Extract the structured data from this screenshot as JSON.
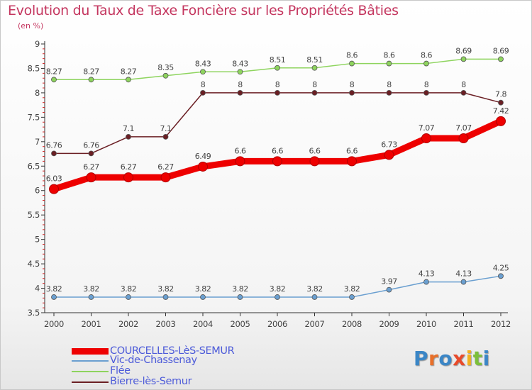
{
  "title": "Evolution du Taux de Taxe Foncière sur les Propriétés Bâties",
  "subtitle": "(en %)",
  "logo": {
    "text": "Proxiti",
    "letter_colors": [
      "#3b86c6",
      "#e8702a",
      "#3b86c6",
      "#e84a2a",
      "#f2b01e",
      "#7cbf3b",
      "#3b86c6"
    ]
  },
  "chart_data": {
    "type": "line",
    "x": [
      "2000",
      "2001",
      "2002",
      "2003",
      "2004",
      "2005",
      "2006",
      "2007",
      "2008",
      "2009",
      "2010",
      "2011",
      "2012"
    ],
    "ylim": [
      3.5,
      9
    ],
    "yticks": [
      "3.5",
      "4",
      "4.5",
      "5",
      "5.5",
      "6",
      "6.5",
      "7",
      "7.5",
      "8",
      "8.5",
      "9"
    ],
    "grid": false,
    "legend_position": "bottom-left",
    "series": [
      {
        "name": "Bierre-lès-Semur",
        "color": "#6b1f24",
        "values": [
          6.76,
          6.76,
          7.1,
          7.1,
          8,
          8,
          8,
          8,
          8,
          8,
          8,
          8,
          7.8
        ],
        "labels": [
          "6.76",
          "6.76",
          "7.1",
          "7.1",
          "8",
          "8",
          "8",
          "8",
          "8",
          "8",
          "8",
          "8",
          "7.8"
        ]
      },
      {
        "name": "Flée",
        "color": "#8ed45e",
        "values": [
          8.27,
          8.27,
          8.27,
          8.35,
          8.43,
          8.43,
          8.51,
          8.51,
          8.6,
          8.6,
          8.6,
          8.69,
          8.69
        ],
        "labels": [
          "8.27",
          "8.27",
          "8.27",
          "8.35",
          "8.43",
          "8.43",
          "8.51",
          "8.51",
          "8.6",
          "8.6",
          "8.6",
          "8.69",
          "8.69"
        ]
      },
      {
        "name": "Vic-de-Chassenay",
        "color": "#6a9fd0",
        "values": [
          3.82,
          3.82,
          3.82,
          3.82,
          3.82,
          3.82,
          3.82,
          3.82,
          3.82,
          3.97,
          4.13,
          4.13,
          4.25
        ],
        "labels": [
          "3.82",
          "3.82",
          "3.82",
          "3.82",
          "3.82",
          "3.82",
          "3.82",
          "3.82",
          "3.82",
          "3.97",
          "4.13",
          "4.13",
          "4.25"
        ]
      },
      {
        "name": "COURCELLES-LèS-SEMUR",
        "color": "#ee0000",
        "values": [
          6.03,
          6.27,
          6.27,
          6.27,
          6.49,
          6.6,
          6.6,
          6.6,
          6.6,
          6.73,
          7.07,
          7.07,
          7.42
        ],
        "labels": [
          "6.03",
          "6.27",
          "6.27",
          "6.27",
          "6.49",
          "6.6",
          "6.6",
          "6.6",
          "6.6",
          "6.73",
          "7.07",
          "7.07",
          "7.42"
        ]
      }
    ]
  }
}
